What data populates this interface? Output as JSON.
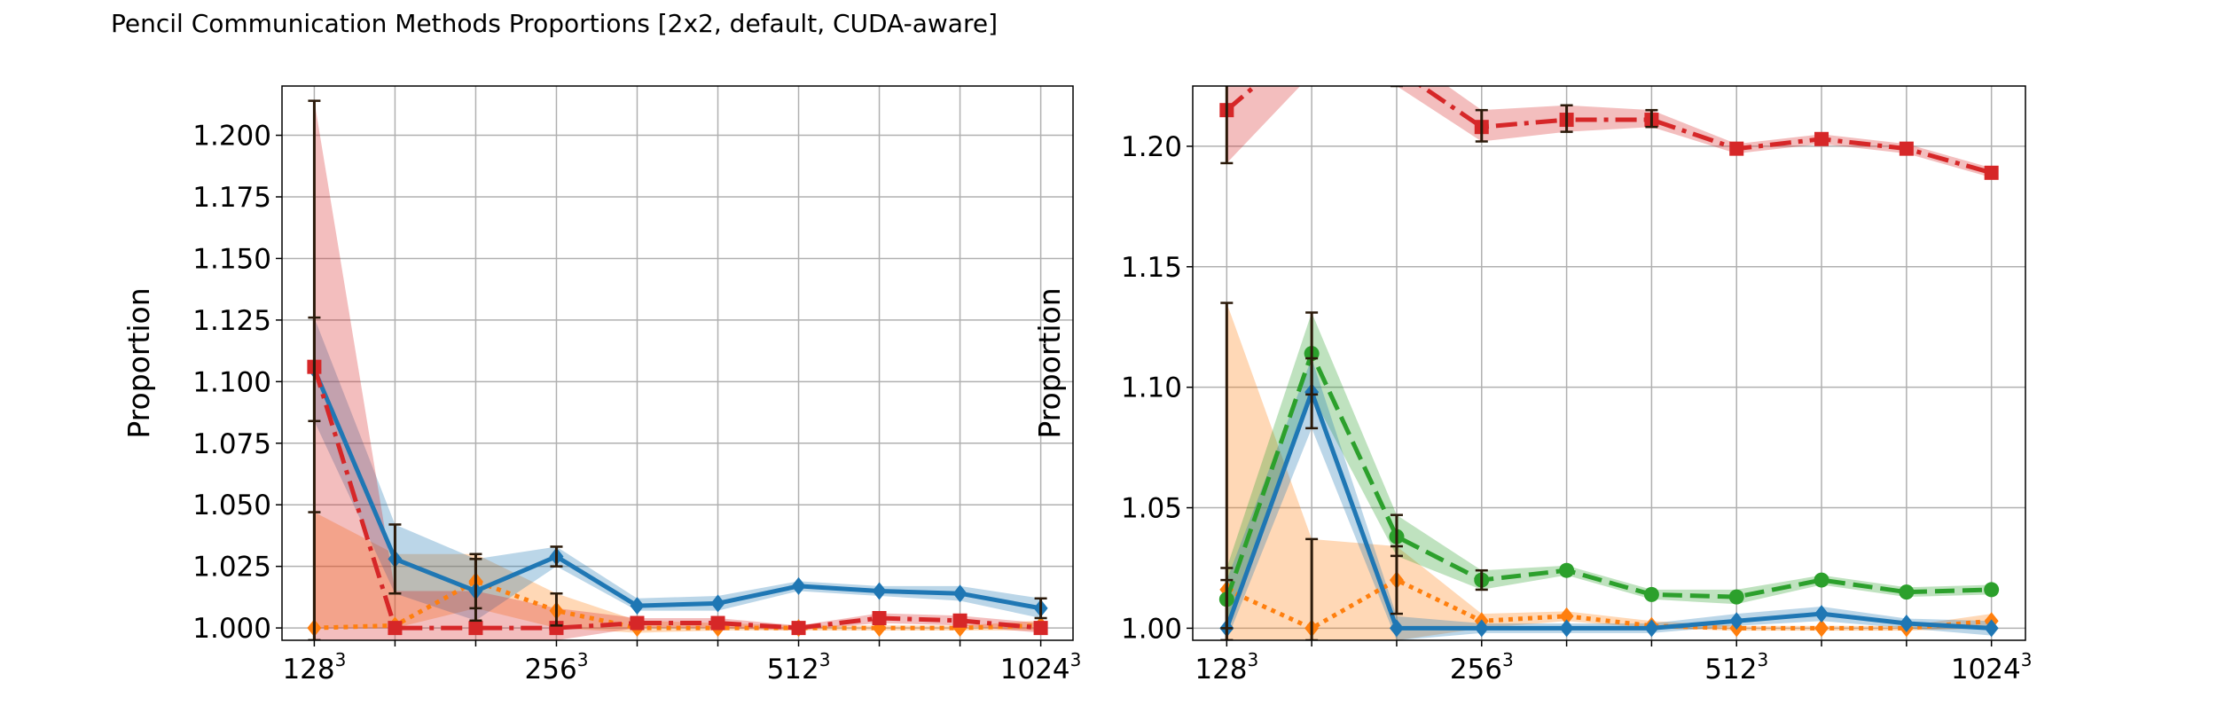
{
  "figure": {
    "title": "Pencil Communication Methods Proportions [2x2, default, CUDA-aware]"
  },
  "colors": {
    "blue": "#1f77b4",
    "orange": "#ff7f0e",
    "green": "#2ca02c",
    "red": "#d62728",
    "grid": "#b0b0b0",
    "errorbar": "#2b1a0a"
  },
  "chart_data": [
    {
      "type": "line",
      "panel": "left",
      "ylabel": "Proportion",
      "xlabel": "",
      "x_tick_labels": [
        {
          "base": "128",
          "exp": "3"
        },
        {
          "base": "256",
          "exp": "3"
        },
        {
          "base": "512",
          "exp": "3"
        },
        {
          "base": "1024",
          "exp": "3"
        }
      ],
      "x_tick_positions": [
        0,
        3,
        6,
        9
      ],
      "xlim": [
        -0.4,
        9.4
      ],
      "ylim": [
        0.995,
        1.22
      ],
      "y_ticks": [
        "1.000",
        "1.025",
        "1.050",
        "1.075",
        "1.100",
        "1.125",
        "1.150",
        "1.175",
        "1.200"
      ],
      "grid": true,
      "x": [
        0,
        1,
        2,
        3,
        4,
        5,
        6,
        7,
        8,
        9
      ],
      "series": [
        {
          "color": "orange",
          "style": "dotted",
          "marker": "diamond",
          "values": [
            1.0,
            1.001,
            1.019,
            1.007,
            1.0,
            1.0,
            1.0,
            1.0,
            1.0,
            1.001
          ],
          "band": [
            [
              1.0,
              1.047
            ],
            [
              1.0,
              1.03
            ],
            [
              1.008,
              1.03
            ],
            [
              1.0,
              1.014
            ],
            [
              0.998,
              1.003
            ],
            [
              0.999,
              1.002
            ],
            [
              0.999,
              1.001
            ],
            [
              0.999,
              1.001
            ],
            [
              0.999,
              1.001
            ],
            [
              0.999,
              1.003
            ]
          ],
          "errorbars": [
            [
              0.995,
              1.047
            ],
            null,
            [
              1.008,
              1.03
            ],
            [
              1.001,
              1.014
            ],
            null,
            null,
            null,
            null,
            null,
            null
          ]
        },
        {
          "color": "blue",
          "style": "solid",
          "marker": "diamond",
          "values": [
            1.105,
            1.028,
            1.015,
            1.029,
            1.009,
            1.01,
            1.017,
            1.015,
            1.014,
            1.008
          ],
          "band": [
            [
              1.084,
              1.126
            ],
            [
              1.014,
              1.042
            ],
            [
              1.003,
              1.028
            ],
            [
              1.025,
              1.033
            ],
            [
              1.007,
              1.012
            ],
            [
              1.007,
              1.013
            ],
            [
              1.015,
              1.019
            ],
            [
              1.013,
              1.017
            ],
            [
              1.011,
              1.017
            ],
            [
              1.004,
              1.012
            ]
          ],
          "errorbars": [
            [
              1.084,
              1.126
            ],
            [
              1.014,
              1.042
            ],
            [
              1.003,
              1.028
            ],
            [
              1.025,
              1.033
            ],
            null,
            null,
            null,
            null,
            null,
            [
              1.004,
              1.012
            ]
          ]
        },
        {
          "color": "red",
          "style": "dashdot",
          "marker": "square",
          "values": [
            1.106,
            1.0,
            1.0,
            1.0,
            1.002,
            1.002,
            1.0,
            1.004,
            1.003,
            1.0
          ],
          "band": [
            [
              0.995,
              1.214
            ],
            [
              0.995,
              1.015
            ],
            [
              0.995,
              1.015
            ],
            [
              0.995,
              1.008
            ],
            [
              1.0,
              1.004
            ],
            [
              1.0,
              1.004
            ],
            [
              0.999,
              1.001
            ],
            [
              1.002,
              1.006
            ],
            [
              1.001,
              1.005
            ],
            [
              0.998,
              1.002
            ]
          ],
          "errorbars": [
            [
              0.995,
              1.214
            ],
            null,
            null,
            null,
            null,
            null,
            null,
            null,
            null,
            null
          ]
        }
      ]
    },
    {
      "type": "line",
      "panel": "right",
      "ylabel": "Proportion",
      "xlabel": "",
      "x_tick_labels": [
        {
          "base": "128",
          "exp": "3"
        },
        {
          "base": "256",
          "exp": "3"
        },
        {
          "base": "512",
          "exp": "3"
        },
        {
          "base": "1024",
          "exp": "3"
        }
      ],
      "x_tick_positions": [
        0,
        3,
        6,
        9
      ],
      "xlim": [
        -0.4,
        9.4
      ],
      "ylim": [
        0.995,
        1.225
      ],
      "y_ticks": [
        "1.00",
        "1.05",
        "1.10",
        "1.15",
        "1.20"
      ],
      "grid": true,
      "x": [
        0,
        1,
        2,
        3,
        4,
        5,
        6,
        7,
        8,
        9
      ],
      "series": [
        {
          "color": "orange",
          "style": "dotted",
          "marker": "diamond",
          "values": [
            1.016,
            1.0,
            1.02,
            1.003,
            1.005,
            1.001,
            1.0,
            1.0,
            1.0,
            1.003
          ],
          "band": [
            [
              0.995,
              1.135
            ],
            [
              0.995,
              1.037
            ],
            [
              0.995,
              1.034
            ],
            [
              1.0,
              1.006
            ],
            [
              1.003,
              1.007
            ],
            [
              1.0,
              1.003
            ],
            [
              0.999,
              1.001
            ],
            [
              0.999,
              1.001
            ],
            [
              0.999,
              1.001
            ],
            [
              1.0,
              1.006
            ]
          ],
          "errorbars": [
            [
              0.995,
              1.135
            ],
            [
              0.995,
              1.037
            ],
            [
              1.006,
              1.034
            ],
            null,
            null,
            null,
            null,
            null,
            null,
            null
          ]
        },
        {
          "color": "green",
          "style": "dashed",
          "marker": "circle",
          "values": [
            1.012,
            1.114,
            1.038,
            1.02,
            1.024,
            1.014,
            1.013,
            1.02,
            1.015,
            1.016
          ],
          "band": [
            [
              1.0,
              1.025
            ],
            [
              1.097,
              1.131
            ],
            [
              1.03,
              1.047
            ],
            [
              1.016,
              1.024
            ],
            [
              1.022,
              1.026
            ],
            [
              1.012,
              1.016
            ],
            [
              1.01,
              1.016
            ],
            [
              1.018,
              1.022
            ],
            [
              1.013,
              1.017
            ],
            [
              1.014,
              1.018
            ]
          ],
          "errorbars": [
            [
              1.0,
              1.025
            ],
            [
              1.097,
              1.131
            ],
            [
              1.03,
              1.047
            ],
            [
              1.016,
              1.024
            ],
            null,
            null,
            null,
            null,
            null,
            null
          ]
        },
        {
          "color": "blue",
          "style": "solid",
          "marker": "diamond",
          "values": [
            1.0,
            1.098,
            1.0,
            1.0,
            1.0,
            1.0,
            1.003,
            1.006,
            1.002,
            1.0
          ],
          "band": [
            [
              0.995,
              1.02
            ],
            [
              1.083,
              1.112
            ],
            [
              0.995,
              1.005
            ],
            [
              0.998,
              1.002
            ],
            [
              0.998,
              1.002
            ],
            [
              0.998,
              1.002
            ],
            [
              1.001,
              1.006
            ],
            [
              1.003,
              1.009
            ],
            [
              1.0,
              1.004
            ],
            [
              0.997,
              1.003
            ]
          ],
          "errorbars": [
            [
              0.995,
              1.02
            ],
            [
              1.083,
              1.112
            ],
            null,
            null,
            null,
            null,
            null,
            null,
            null,
            null
          ]
        },
        {
          "color": "red",
          "style": "dashdot",
          "marker": "square",
          "values": [
            1.215,
            1.245,
            1.232,
            1.208,
            1.211,
            1.211,
            1.199,
            1.203,
            1.199,
            1.189
          ],
          "band": [
            [
              1.193,
              1.237
            ],
            [
              1.23,
              1.26
            ],
            [
              1.225,
              1.24
            ],
            [
              1.202,
              1.215
            ],
            [
              1.206,
              1.217
            ],
            [
              1.208,
              1.215
            ],
            [
              1.197,
              1.201
            ],
            [
              1.201,
              1.205
            ],
            [
              1.197,
              1.201
            ],
            [
              1.187,
              1.191
            ]
          ],
          "errorbars": [
            [
              1.193,
              1.237
            ],
            null,
            [
              1.225,
              1.24
            ],
            [
              1.202,
              1.215
            ],
            [
              1.206,
              1.217
            ],
            [
              1.208,
              1.215
            ],
            null,
            null,
            null,
            null
          ]
        }
      ]
    }
  ]
}
